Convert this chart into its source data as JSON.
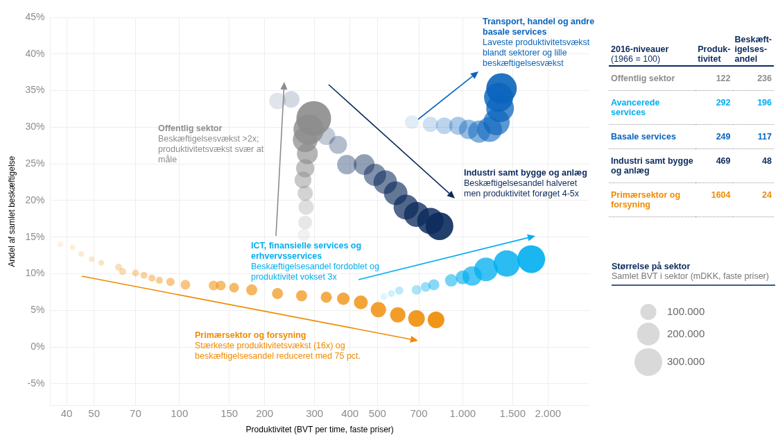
{
  "chart_data": [
    {
      "type": "bubble",
      "xlabel": "Produktivitet (BVT per time, faste priser)",
      "ylabel": "Andel af samlet beskæftigelse",
      "log": "x",
      "grid": true,
      "legend": false,
      "xlim": [
        35,
        2800
      ],
      "xticks": [
        40,
        50,
        70,
        100,
        150,
        200,
        300,
        400,
        500,
        700,
        {
          "value": 1000,
          "label": "1.000"
        },
        {
          "value": 1500,
          "label": "1.500"
        },
        {
          "value": 2000,
          "label": "2.000"
        }
      ],
      "ylim": [
        -8,
        45
      ],
      "yticks": [
        {
          "value": -5,
          "label": "-5%"
        },
        {
          "value": 0,
          "label": "0%"
        },
        {
          "value": 5,
          "label": "5%"
        },
        {
          "value": 10,
          "label": "10%"
        },
        {
          "value": 15,
          "label": "15%"
        },
        {
          "value": 20,
          "label": "20%"
        },
        {
          "value": 25,
          "label": "25%"
        },
        {
          "value": 30,
          "label": "30%"
        },
        {
          "value": 35,
          "label": "35%"
        },
        {
          "value": 40,
          "label": "40%"
        },
        {
          "value": 45,
          "label": "45%"
        }
      ],
      "legend_title": "Størrelse på sektor",
      "size_legend": [
        {
          "value": 100000,
          "label": "100.000"
        },
        {
          "value": 200000,
          "label": "200.000"
        },
        {
          "value": 300000,
          "label": "300.000"
        }
      ],
      "annotations": [
        "Beskæftigelsesvækst >2x; produktivitetsvækst svær at måle",
        "Beskæftigelsesandel fordoblet og produktivitet vokset 3x",
        "Laveste produktivitetsvækst blandt sektorer og lille beskæftigelsesvækst",
        "Beskæftigelsesandel halveret men produktivitet forøget 4-5x",
        "Stærkeste produktivitetsvækst (16x) og beskæftigelsesandel reduceret med 75 pct.",
        "Samlet BVT i sektor (mDKK, faste priser)"
      ],
      "series": [
        {
          "name": "Offentlig sektor",
          "color": "#8c8c8c",
          "x": [
            275,
            278,
            280,
            278,
            273,
            278,
            283,
            278,
            286,
            298
          ],
          "values": [
            15.3,
            17.0,
            19.1,
            21.0,
            22.8,
            24.4,
            26.4,
            28.3,
            29.7,
            31.2
          ],
          "sizes": [
            60000,
            75000,
            90000,
            90000,
            110000,
            130000,
            170000,
            240000,
            360000,
            470000
          ]
        },
        {
          "name": "ICT, finansielle services og erhvervsservices",
          "color": "#00aeef",
          "x": [
            527,
            560,
            597,
            687,
            740,
            791,
            911,
            1000,
            1080,
            1208,
            1431,
            1746
          ],
          "values": [
            6.9,
            7.3,
            7.7,
            7.8,
            8.2,
            8.5,
            9.1,
            9.5,
            9.7,
            10.6,
            11.4,
            12.0
          ],
          "sizes": [
            19000,
            19000,
            27000,
            37000,
            37000,
            48000,
            61000,
            75000,
            147000,
            217000,
            271000,
            300000
          ]
        },
        {
          "name": "Transport, handel og andre basale services",
          "color": "#0a64bc",
          "x": [
            661,
            769,
            861,
            964,
            1049,
            1143,
            1244,
            1316,
            1355,
            1339,
            1371
          ],
          "values": [
            30.7,
            30.4,
            30.2,
            30.2,
            29.7,
            29.4,
            29.7,
            30.7,
            32.6,
            34.1,
            35.3
          ],
          "sizes": [
            75000,
            91000,
            108000,
            127000,
            147000,
            192000,
            243000,
            271000,
            300000,
            331000,
            363000
          ]
        },
        {
          "name": "Industri samt bygge og anlæg",
          "color": "#0b2a5c",
          "x": [
            222,
            248,
            330,
            363,
            390,
            449,
            490,
            533,
            580,
            631,
            687,
            769,
            828
          ],
          "values": [
            33.6,
            33.8,
            28.8,
            27.6,
            24.9,
            24.9,
            23.5,
            22.5,
            21.0,
            19.1,
            18.1,
            17.2,
            16.5
          ],
          "sizes": [
            108000,
            108000,
            127000,
            127000,
            147000,
            169000,
            192000,
            217000,
            217000,
            243000,
            243000,
            271000,
            300000
          ]
        },
        {
          "name": "Primærsektor og forsyning",
          "color": "#f08a00",
          "x": [
            38,
            42,
            45,
            49,
            53,
            61,
            63,
            70,
            75,
            80,
            85,
            93,
            105,
            132,
            140,
            156,
            180,
            222,
            270,
            330,
            379,
            437,
            504,
            590,
            687,
            805
          ],
          "values": [
            14.0,
            13.6,
            12.7,
            12.0,
            11.5,
            10.9,
            10.3,
            10.1,
            9.8,
            9.4,
            9.1,
            8.9,
            8.5,
            8.4,
            8.4,
            8.1,
            7.8,
            7.3,
            7.0,
            6.8,
            6.6,
            6.1,
            5.1,
            4.4,
            3.9,
            3.7
          ],
          "sizes": [
            12000,
            12000,
            12000,
            12000,
            12000,
            19000,
            19000,
            19000,
            19000,
            19000,
            19000,
            27000,
            37000,
            37000,
            37000,
            37000,
            48000,
            48000,
            48000,
            48000,
            61000,
            75000,
            91000,
            91000,
            108000,
            108000
          ]
        }
      ]
    },
    {
      "type": "other",
      "data_labels": true,
      "title": "2016-niveauer",
      "subtitle": "(1966 = 100)",
      "categories": [
        "Offentlig sektor",
        "Avancerede services",
        "Basale services",
        "Industri samt bygge og anlæg",
        "Primærsektor og forsyning"
      ],
      "colors": [
        "#8c8c8c",
        "#00aeef",
        "#0a64bc",
        "#0b2a5c",
        "#f08a00"
      ],
      "series": [
        {
          "name": "Produk-\ntivitet",
          "values": [
            122,
            292,
            249,
            469,
            1604
          ]
        },
        {
          "name": "Beskæft-\nigelses-\nandel",
          "values": [
            236,
            196,
            117,
            48,
            24
          ]
        }
      ]
    }
  ]
}
